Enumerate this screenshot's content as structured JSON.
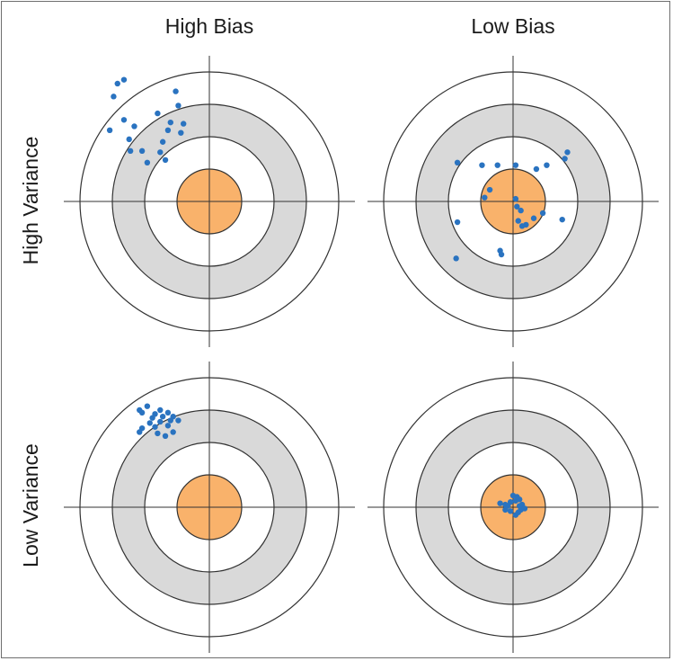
{
  "columns": [
    "High Bias",
    "Low Bias"
  ],
  "rows": [
    "High Variance",
    "Low Variance"
  ],
  "colors": {
    "ring_outline": "#333333",
    "gray_ring": "#d9d9d9",
    "bullseye": "#f9b26b",
    "point": "#2a73c0",
    "axis": "#333333"
  },
  "panels": [
    {
      "id": "high-bias-high-variance",
      "points": [
        [
          -0.71,
          0.91
        ],
        [
          -0.66,
          0.94
        ],
        [
          -0.74,
          0.81
        ],
        [
          -0.77,
          0.55
        ],
        [
          -0.66,
          0.63
        ],
        [
          -0.58,
          0.58
        ],
        [
          -0.62,
          0.48
        ],
        [
          -0.52,
          0.39
        ],
        [
          -0.61,
          0.39
        ],
        [
          -0.48,
          0.3
        ],
        [
          -0.4,
          0.68
        ],
        [
          -0.26,
          0.85
        ],
        [
          -0.3,
          0.61
        ],
        [
          -0.32,
          0.55
        ],
        [
          -0.36,
          0.46
        ],
        [
          -0.38,
          0.38
        ],
        [
          -0.34,
          0.32
        ],
        [
          -0.24,
          0.74
        ],
        [
          -0.2,
          0.6
        ],
        [
          -0.22,
          0.53
        ]
      ]
    },
    {
      "id": "low-bias-high-variance",
      "points": [
        [
          -0.43,
          0.3
        ],
        [
          -0.24,
          0.28
        ],
        [
          -0.12,
          0.28
        ],
        [
          0.02,
          0.28
        ],
        [
          0.18,
          0.25
        ],
        [
          0.26,
          0.28
        ],
        [
          0.42,
          0.38
        ],
        [
          0.4,
          0.33
        ],
        [
          -0.18,
          0.09
        ],
        [
          -0.22,
          0.03
        ],
        [
          0.02,
          0.02
        ],
        [
          0.03,
          -0.04
        ],
        [
          0.06,
          -0.07
        ],
        [
          0.1,
          -0.18
        ],
        [
          0.16,
          -0.13
        ],
        [
          0.23,
          -0.09
        ],
        [
          0.04,
          -0.15
        ],
        [
          0.07,
          -0.19
        ],
        [
          0.38,
          -0.14
        ],
        [
          -0.43,
          -0.16
        ],
        [
          -0.1,
          -0.38
        ],
        [
          -0.09,
          -0.41
        ],
        [
          -0.44,
          -0.44
        ]
      ]
    },
    {
      "id": "high-bias-low-variance",
      "points": [
        [
          -0.54,
          0.75
        ],
        [
          -0.52,
          0.73
        ],
        [
          -0.48,
          0.78
        ],
        [
          -0.42,
          0.72
        ],
        [
          -0.38,
          0.75
        ],
        [
          -0.44,
          0.69
        ],
        [
          -0.36,
          0.7
        ],
        [
          -0.32,
          0.73
        ],
        [
          -0.28,
          0.7
        ],
        [
          -0.38,
          0.66
        ],
        [
          -0.3,
          0.67
        ],
        [
          -0.46,
          0.65
        ],
        [
          -0.52,
          0.61
        ],
        [
          -0.54,
          0.58
        ],
        [
          -0.42,
          0.62
        ],
        [
          -0.32,
          0.63
        ],
        [
          -0.28,
          0.58
        ],
        [
          -0.4,
          0.57
        ],
        [
          -0.34,
          0.55
        ],
        [
          -0.24,
          0.67
        ]
      ]
    },
    {
      "id": "low-bias-low-variance",
      "points": [
        [
          -0.1,
          0.03
        ],
        [
          -0.06,
          0.02
        ],
        [
          -0.02,
          0.04
        ],
        [
          0.02,
          0.05
        ],
        [
          0.05,
          0.06
        ],
        [
          0.03,
          0.08
        ],
        [
          0.0,
          0.09
        ],
        [
          -0.04,
          0.01
        ],
        [
          0.07,
          0.02
        ],
        [
          0.06,
          -0.02
        ],
        [
          0.04,
          -0.04
        ],
        [
          0.02,
          -0.06
        ],
        [
          -0.02,
          -0.03
        ],
        [
          0.09,
          -0.01
        ],
        [
          -0.06,
          -0.02
        ],
        [
          0.05,
          0.01
        ]
      ]
    }
  ]
}
